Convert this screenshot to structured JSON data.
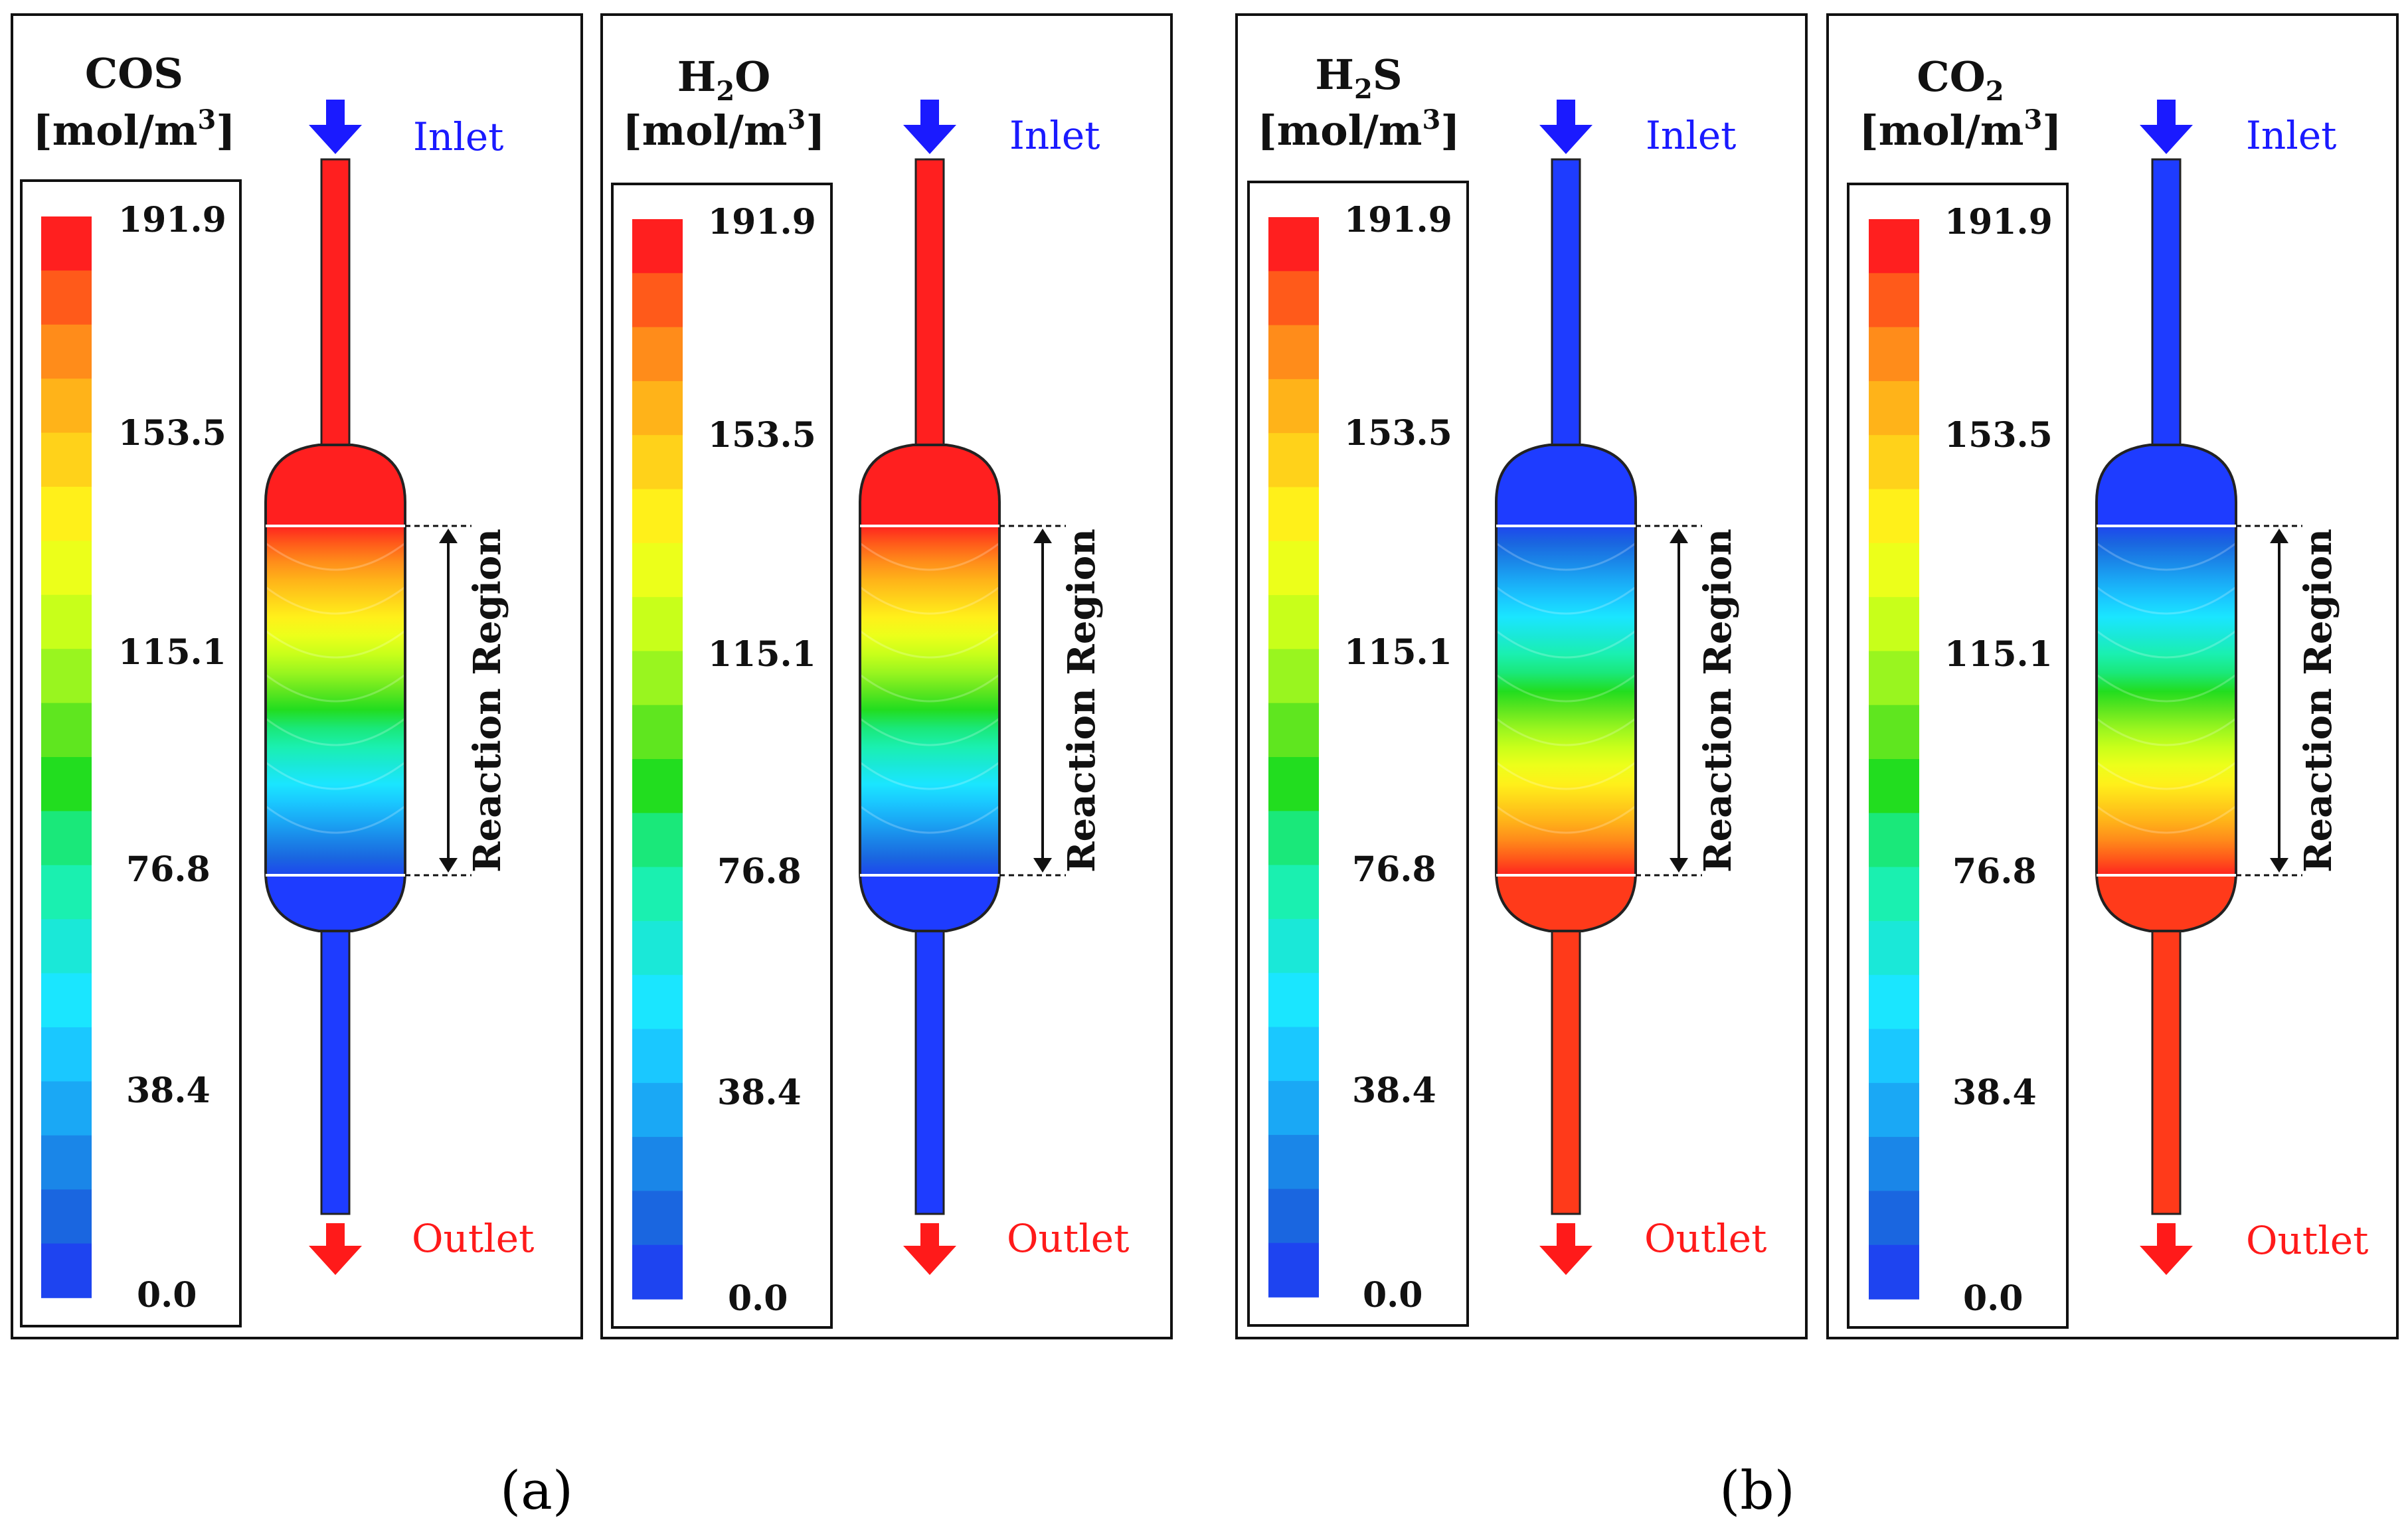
{
  "figure": {
    "sublabels": [
      "(a)",
      "(b)"
    ],
    "inlet_label": "Inlet",
    "outlet_label": "Outlet",
    "region_label": "Reaction Region",
    "unit": "[mol/m",
    "unit_sup": "3",
    "unit_close": "]",
    "legend_ticks": [
      "191.9",
      "153.5",
      "115.1",
      "76.8",
      "38.4",
      "0.0"
    ],
    "colors": {
      "inlet_arrow": "#1a1aff",
      "outlet_arrow": "#ff1a1a",
      "low": "#1e3cff",
      "high": "#ff1f1f",
      "outlet_tube_high": "#ff3a1a"
    },
    "panels": [
      {
        "species": "COS",
        "species_parts": [
          "COS"
        ],
        "subscript": "",
        "suffix": "",
        "trend": "decreasing"
      },
      {
        "species": "H2O",
        "species_parts": [
          "H",
          "2",
          "O"
        ],
        "subscript": "2",
        "suffix": "O",
        "trend": "decreasing"
      },
      {
        "species": "H2S",
        "species_parts": [
          "H",
          "2",
          "S"
        ],
        "subscript": "2",
        "suffix": "S",
        "trend": "increasing"
      },
      {
        "species": "CO2",
        "species_parts": [
          "CO",
          "2",
          ""
        ],
        "subscript": "2",
        "suffix": "",
        "trend": "increasing"
      }
    ]
  }
}
